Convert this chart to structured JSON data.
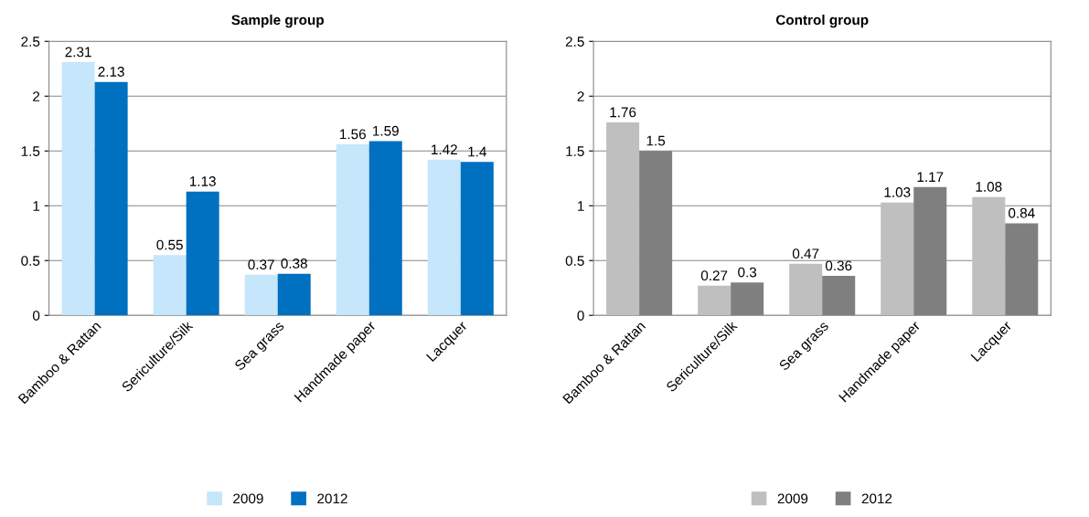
{
  "chart_data": [
    {
      "type": "bar",
      "title": "Sample group",
      "categories": [
        "Bamboo & Rattan",
        "Sericulture/Silk",
        "Sea grass",
        "Handmade paper",
        "Lacquer"
      ],
      "series": [
        {
          "name": "2009",
          "color": "#c6e6fb",
          "values": [
            2.31,
            0.55,
            0.37,
            1.56,
            1.42
          ]
        },
        {
          "name": "2012",
          "color": "#0070c0",
          "values": [
            2.13,
            1.13,
            0.38,
            1.59,
            1.4
          ]
        }
      ],
      "ylim": [
        0,
        2.5
      ],
      "yticks": [
        0,
        0.5,
        1,
        1.5,
        2,
        2.5
      ],
      "grid": "y",
      "legend": "bottom",
      "data_labels": true
    },
    {
      "type": "bar",
      "title": "Control group",
      "categories": [
        "Bamboo & Rattan",
        "Sericulture/Silk",
        "Sea grass",
        "Handmade paper",
        "Lacquer"
      ],
      "series": [
        {
          "name": "2009",
          "color": "#bfbfbf",
          "values": [
            1.76,
            0.27,
            0.47,
            1.03,
            1.08
          ]
        },
        {
          "name": "2012",
          "color": "#7f7f7f",
          "values": [
            1.5,
            0.3,
            0.36,
            1.17,
            0.84
          ]
        }
      ],
      "ylim": [
        0,
        2.5
      ],
      "yticks": [
        0,
        0.5,
        1,
        1.5,
        2,
        2.5
      ],
      "grid": "y",
      "legend": "bottom",
      "data_labels": true
    }
  ]
}
